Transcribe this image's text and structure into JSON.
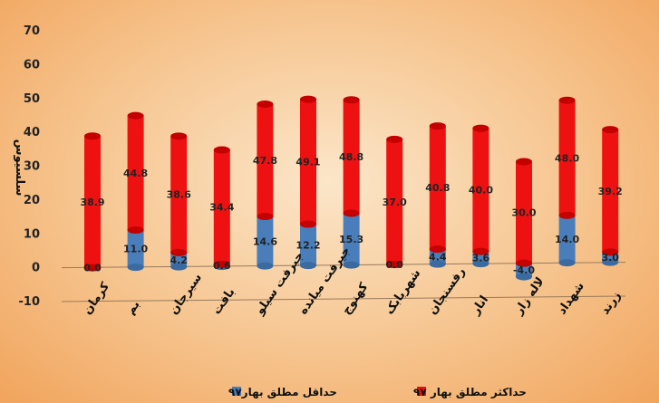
{
  "chart_data": {
    "type": "bar",
    "title": "",
    "xlabel": "",
    "ylabel": "سلسیوس",
    "ylim": [
      -10,
      70
    ],
    "yticks": [
      -10,
      0,
      10,
      20,
      30,
      40,
      50,
      60,
      70
    ],
    "grid": false,
    "legend_position": "bottom",
    "categories": [
      "کرمان",
      "بم",
      "سیرجان",
      "بافت",
      "جیرفت سیلو",
      "جیرفت میانده",
      "کهنوج",
      "شهربابک",
      "رفسنجان",
      "انار",
      "لاله زار",
      "شهداد",
      "زرند"
    ],
    "series": [
      {
        "name": "حداقل مطلق بهار۹۷",
        "color": "#4a7ebb",
        "values": [
          0.0,
          11.0,
          4.2,
          0.6,
          14.6,
          12.2,
          15.3,
          0.0,
          4.4,
          3.6,
          -4.0,
          14.0,
          3.0
        ],
        "labels": [
          "0.0",
          "11.0",
          "4.2",
          "0.6",
          "14.6",
          "12.2",
          "15.3",
          "0.0",
          "4.4",
          "3.6",
          "-4.0",
          "14.0",
          "3.0"
        ]
      },
      {
        "name": "حداکثر مطلق بهار ۹۷",
        "color": "#ee1111",
        "values": [
          38.9,
          44.8,
          38.6,
          34.4,
          47.8,
          49.1,
          48.8,
          37.0,
          40.8,
          40.0,
          30.0,
          48.0,
          39.2
        ],
        "labels": [
          "38.9",
          "44.8",
          "38.6",
          "34.4",
          "47.8",
          "49.1",
          "48.8",
          "37.0",
          "40.8",
          "40.0",
          "30.0",
          "48.0",
          "39.2"
        ]
      }
    ]
  }
}
